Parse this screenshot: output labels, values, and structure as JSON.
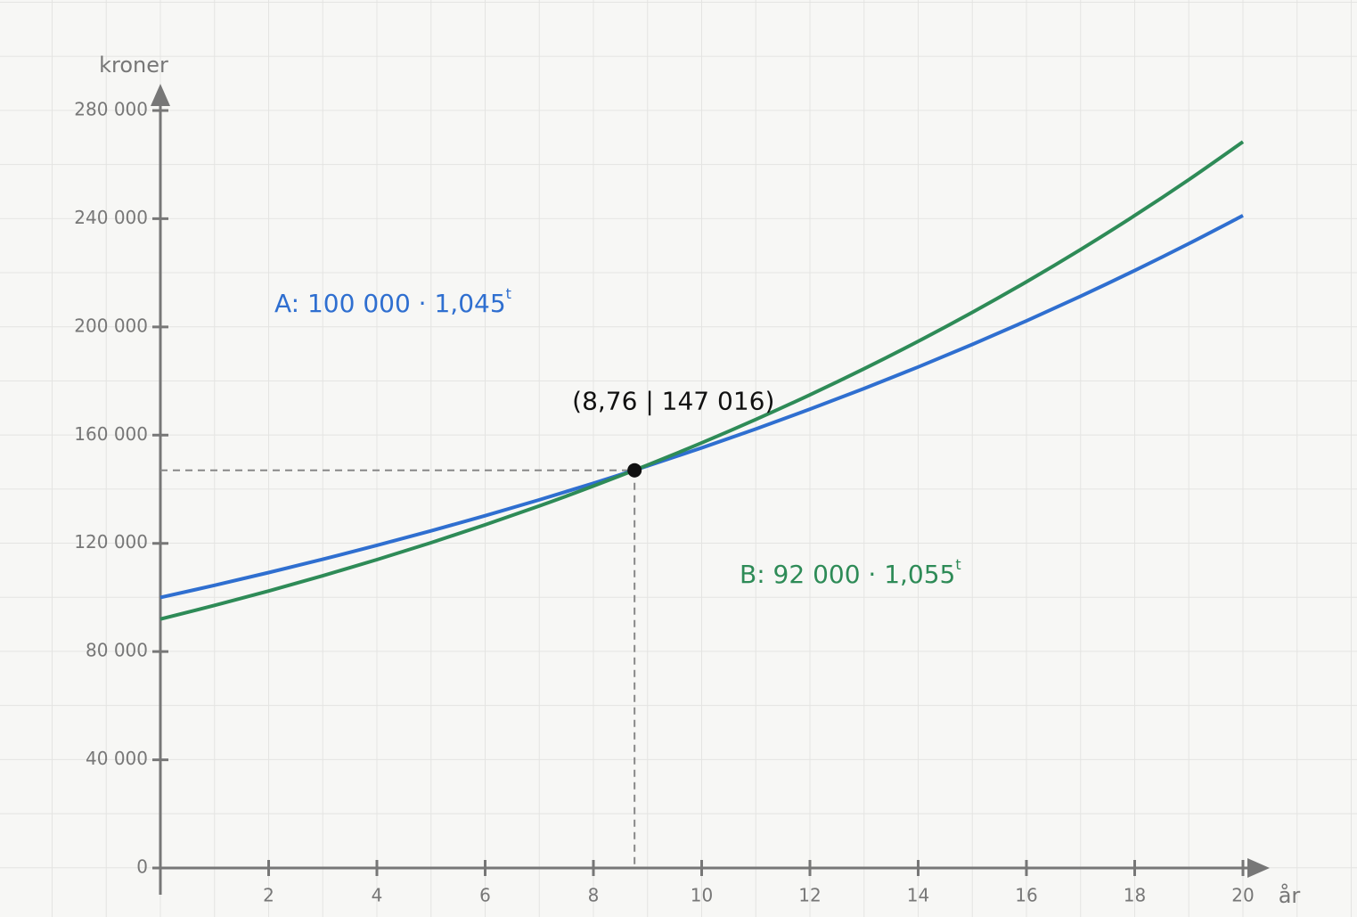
{
  "chart_data": {
    "type": "line",
    "x_label": "år",
    "y_label": "kroner",
    "x": [
      0,
      1,
      2,
      3,
      4,
      5,
      6,
      7,
      8,
      9,
      10,
      11,
      12,
      13,
      14,
      15,
      16,
      17,
      18,
      19,
      20
    ],
    "series": [
      {
        "name": "A: 100 000 · 1,045",
        "exponent": "t",
        "color": "#2f6fd0",
        "values": [
          100000,
          104500,
          109203,
          114117,
          119252,
          124618,
          130226,
          136086,
          142210,
          148610,
          155297,
          162285,
          169588,
          177220,
          185194,
          193528,
          202237,
          211338,
          220848,
          230786,
          241171
        ]
      },
      {
        "name": "B: 92 000 · 1,055",
        "exponent": "t",
        "color": "#2e8b57",
        "values": [
          92000,
          97060,
          102398,
          108030,
          113972,
          120240,
          126854,
          133830,
          141191,
          148957,
          157149,
          165792,
          174911,
          184531,
          194680,
          205388,
          216684,
          228602,
          241175,
          254440,
          268434
        ]
      }
    ],
    "intersection": {
      "x": 8.76,
      "y": 147016,
      "label": "(8,76 | 147 016)"
    },
    "xlim": [
      0,
      20
    ],
    "ylim": [
      0,
      280000
    ],
    "xticks": [
      2,
      4,
      6,
      8,
      10,
      12,
      14,
      16,
      18,
      20
    ],
    "yticks": [
      0,
      {
        "value": 40000,
        "label": "40 000"
      },
      {
        "value": 80000,
        "label": "80 000"
      },
      {
        "value": 120000,
        "label": "120 000"
      },
      {
        "value": 160000,
        "label": "160 000"
      },
      {
        "value": 200000,
        "label": "200 000"
      },
      {
        "value": 240000,
        "label": "240 000"
      },
      {
        "value": 280000,
        "label": "280 000"
      }
    ]
  }
}
